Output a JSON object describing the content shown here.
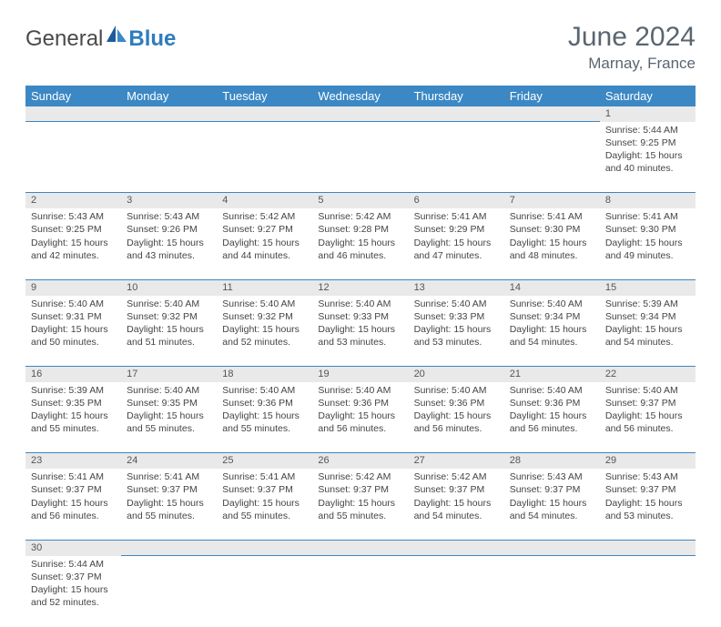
{
  "logo": {
    "textA": "General",
    "textB": "Blue"
  },
  "title": "June 2024",
  "location": "Marnay, France",
  "colors": {
    "header_bg": "#3b88c4",
    "header_text": "#ffffff",
    "daynum_bg": "#e9e9e9",
    "border": "#3b88c4",
    "title_color": "#5a6570",
    "logo_gray": "#4a4a4a",
    "logo_blue": "#2e7cc0",
    "cell_text": "#444444"
  },
  "weekdays": [
    "Sunday",
    "Monday",
    "Tuesday",
    "Wednesday",
    "Thursday",
    "Friday",
    "Saturday"
  ],
  "weeks": [
    [
      null,
      null,
      null,
      null,
      null,
      null,
      {
        "n": "1",
        "sr": "Sunrise: 5:44 AM",
        "ss": "Sunset: 9:25 PM",
        "d1": "Daylight: 15 hours",
        "d2": "and 40 minutes."
      }
    ],
    [
      {
        "n": "2",
        "sr": "Sunrise: 5:43 AM",
        "ss": "Sunset: 9:25 PM",
        "d1": "Daylight: 15 hours",
        "d2": "and 42 minutes."
      },
      {
        "n": "3",
        "sr": "Sunrise: 5:43 AM",
        "ss": "Sunset: 9:26 PM",
        "d1": "Daylight: 15 hours",
        "d2": "and 43 minutes."
      },
      {
        "n": "4",
        "sr": "Sunrise: 5:42 AM",
        "ss": "Sunset: 9:27 PM",
        "d1": "Daylight: 15 hours",
        "d2": "and 44 minutes."
      },
      {
        "n": "5",
        "sr": "Sunrise: 5:42 AM",
        "ss": "Sunset: 9:28 PM",
        "d1": "Daylight: 15 hours",
        "d2": "and 46 minutes."
      },
      {
        "n": "6",
        "sr": "Sunrise: 5:41 AM",
        "ss": "Sunset: 9:29 PM",
        "d1": "Daylight: 15 hours",
        "d2": "and 47 minutes."
      },
      {
        "n": "7",
        "sr": "Sunrise: 5:41 AM",
        "ss": "Sunset: 9:30 PM",
        "d1": "Daylight: 15 hours",
        "d2": "and 48 minutes."
      },
      {
        "n": "8",
        "sr": "Sunrise: 5:41 AM",
        "ss": "Sunset: 9:30 PM",
        "d1": "Daylight: 15 hours",
        "d2": "and 49 minutes."
      }
    ],
    [
      {
        "n": "9",
        "sr": "Sunrise: 5:40 AM",
        "ss": "Sunset: 9:31 PM",
        "d1": "Daylight: 15 hours",
        "d2": "and 50 minutes."
      },
      {
        "n": "10",
        "sr": "Sunrise: 5:40 AM",
        "ss": "Sunset: 9:32 PM",
        "d1": "Daylight: 15 hours",
        "d2": "and 51 minutes."
      },
      {
        "n": "11",
        "sr": "Sunrise: 5:40 AM",
        "ss": "Sunset: 9:32 PM",
        "d1": "Daylight: 15 hours",
        "d2": "and 52 minutes."
      },
      {
        "n": "12",
        "sr": "Sunrise: 5:40 AM",
        "ss": "Sunset: 9:33 PM",
        "d1": "Daylight: 15 hours",
        "d2": "and 53 minutes."
      },
      {
        "n": "13",
        "sr": "Sunrise: 5:40 AM",
        "ss": "Sunset: 9:33 PM",
        "d1": "Daylight: 15 hours",
        "d2": "and 53 minutes."
      },
      {
        "n": "14",
        "sr": "Sunrise: 5:40 AM",
        "ss": "Sunset: 9:34 PM",
        "d1": "Daylight: 15 hours",
        "d2": "and 54 minutes."
      },
      {
        "n": "15",
        "sr": "Sunrise: 5:39 AM",
        "ss": "Sunset: 9:34 PM",
        "d1": "Daylight: 15 hours",
        "d2": "and 54 minutes."
      }
    ],
    [
      {
        "n": "16",
        "sr": "Sunrise: 5:39 AM",
        "ss": "Sunset: 9:35 PM",
        "d1": "Daylight: 15 hours",
        "d2": "and 55 minutes."
      },
      {
        "n": "17",
        "sr": "Sunrise: 5:40 AM",
        "ss": "Sunset: 9:35 PM",
        "d1": "Daylight: 15 hours",
        "d2": "and 55 minutes."
      },
      {
        "n": "18",
        "sr": "Sunrise: 5:40 AM",
        "ss": "Sunset: 9:36 PM",
        "d1": "Daylight: 15 hours",
        "d2": "and 55 minutes."
      },
      {
        "n": "19",
        "sr": "Sunrise: 5:40 AM",
        "ss": "Sunset: 9:36 PM",
        "d1": "Daylight: 15 hours",
        "d2": "and 56 minutes."
      },
      {
        "n": "20",
        "sr": "Sunrise: 5:40 AM",
        "ss": "Sunset: 9:36 PM",
        "d1": "Daylight: 15 hours",
        "d2": "and 56 minutes."
      },
      {
        "n": "21",
        "sr": "Sunrise: 5:40 AM",
        "ss": "Sunset: 9:36 PM",
        "d1": "Daylight: 15 hours",
        "d2": "and 56 minutes."
      },
      {
        "n": "22",
        "sr": "Sunrise: 5:40 AM",
        "ss": "Sunset: 9:37 PM",
        "d1": "Daylight: 15 hours",
        "d2": "and 56 minutes."
      }
    ],
    [
      {
        "n": "23",
        "sr": "Sunrise: 5:41 AM",
        "ss": "Sunset: 9:37 PM",
        "d1": "Daylight: 15 hours",
        "d2": "and 56 minutes."
      },
      {
        "n": "24",
        "sr": "Sunrise: 5:41 AM",
        "ss": "Sunset: 9:37 PM",
        "d1": "Daylight: 15 hours",
        "d2": "and 55 minutes."
      },
      {
        "n": "25",
        "sr": "Sunrise: 5:41 AM",
        "ss": "Sunset: 9:37 PM",
        "d1": "Daylight: 15 hours",
        "d2": "and 55 minutes."
      },
      {
        "n": "26",
        "sr": "Sunrise: 5:42 AM",
        "ss": "Sunset: 9:37 PM",
        "d1": "Daylight: 15 hours",
        "d2": "and 55 minutes."
      },
      {
        "n": "27",
        "sr": "Sunrise: 5:42 AM",
        "ss": "Sunset: 9:37 PM",
        "d1": "Daylight: 15 hours",
        "d2": "and 54 minutes."
      },
      {
        "n": "28",
        "sr": "Sunrise: 5:43 AM",
        "ss": "Sunset: 9:37 PM",
        "d1": "Daylight: 15 hours",
        "d2": "and 54 minutes."
      },
      {
        "n": "29",
        "sr": "Sunrise: 5:43 AM",
        "ss": "Sunset: 9:37 PM",
        "d1": "Daylight: 15 hours",
        "d2": "and 53 minutes."
      }
    ],
    [
      {
        "n": "30",
        "sr": "Sunrise: 5:44 AM",
        "ss": "Sunset: 9:37 PM",
        "d1": "Daylight: 15 hours",
        "d2": "and 52 minutes."
      },
      null,
      null,
      null,
      null,
      null,
      null
    ]
  ]
}
